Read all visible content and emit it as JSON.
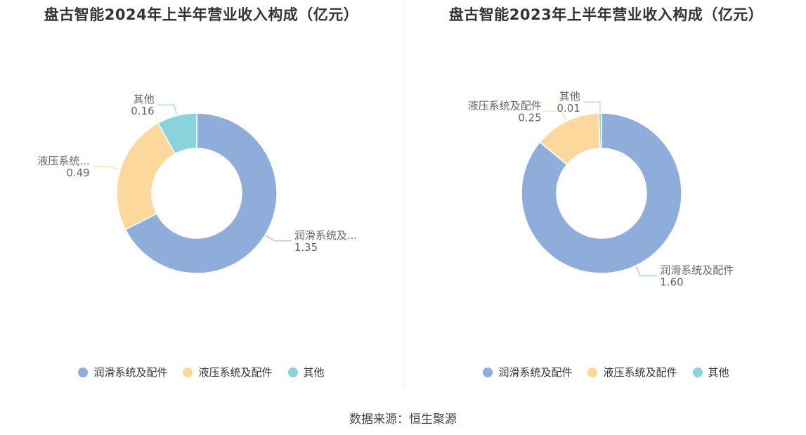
{
  "charts": [
    {
      "title": "盘古智能2024年上半年营业收入构成（亿元）"
    },
    {
      "title": "盘古智能2023年上半年营业收入构成（亿元）"
    }
  ],
  "legend": [
    {
      "label": "润滑系统及配件",
      "color": "#8eadda"
    },
    {
      "label": "液压系统及配件",
      "color": "#fcd89c"
    },
    {
      "label": "其他",
      "color": "#88d3dc"
    }
  ],
  "source": "数据来源：恒生聚源",
  "chart_data": [
    {
      "type": "pie",
      "title": "盘古智能2024年上半年营业收入构成（亿元）",
      "unit": "亿元",
      "categories": [
        "润滑系统及配件",
        "液压系统及配件",
        "其他"
      ],
      "values": [
        1.35,
        0.49,
        0.16
      ],
      "value_labels": [
        "1.35",
        "0.49",
        "0.16"
      ],
      "slice_labels": [
        "润滑系统及...",
        "液压系统...",
        "其他"
      ],
      "colors": [
        "#8eadda",
        "#fcd89c",
        "#88d3dc"
      ],
      "legend": "bottom"
    },
    {
      "type": "pie",
      "title": "盘古智能2023年上半年营业收入构成（亿元）",
      "unit": "亿元",
      "categories": [
        "润滑系统及配件",
        "液压系统及配件",
        "其他"
      ],
      "values": [
        1.6,
        0.25,
        0.01
      ],
      "value_labels": [
        "1.60",
        "0.25",
        "0.01"
      ],
      "slice_labels": [
        "润滑系统及配件",
        "液压系统及配件",
        "其他"
      ],
      "colors": [
        "#8eadda",
        "#fcd89c",
        "#88d3dc"
      ],
      "legend": "bottom"
    }
  ]
}
